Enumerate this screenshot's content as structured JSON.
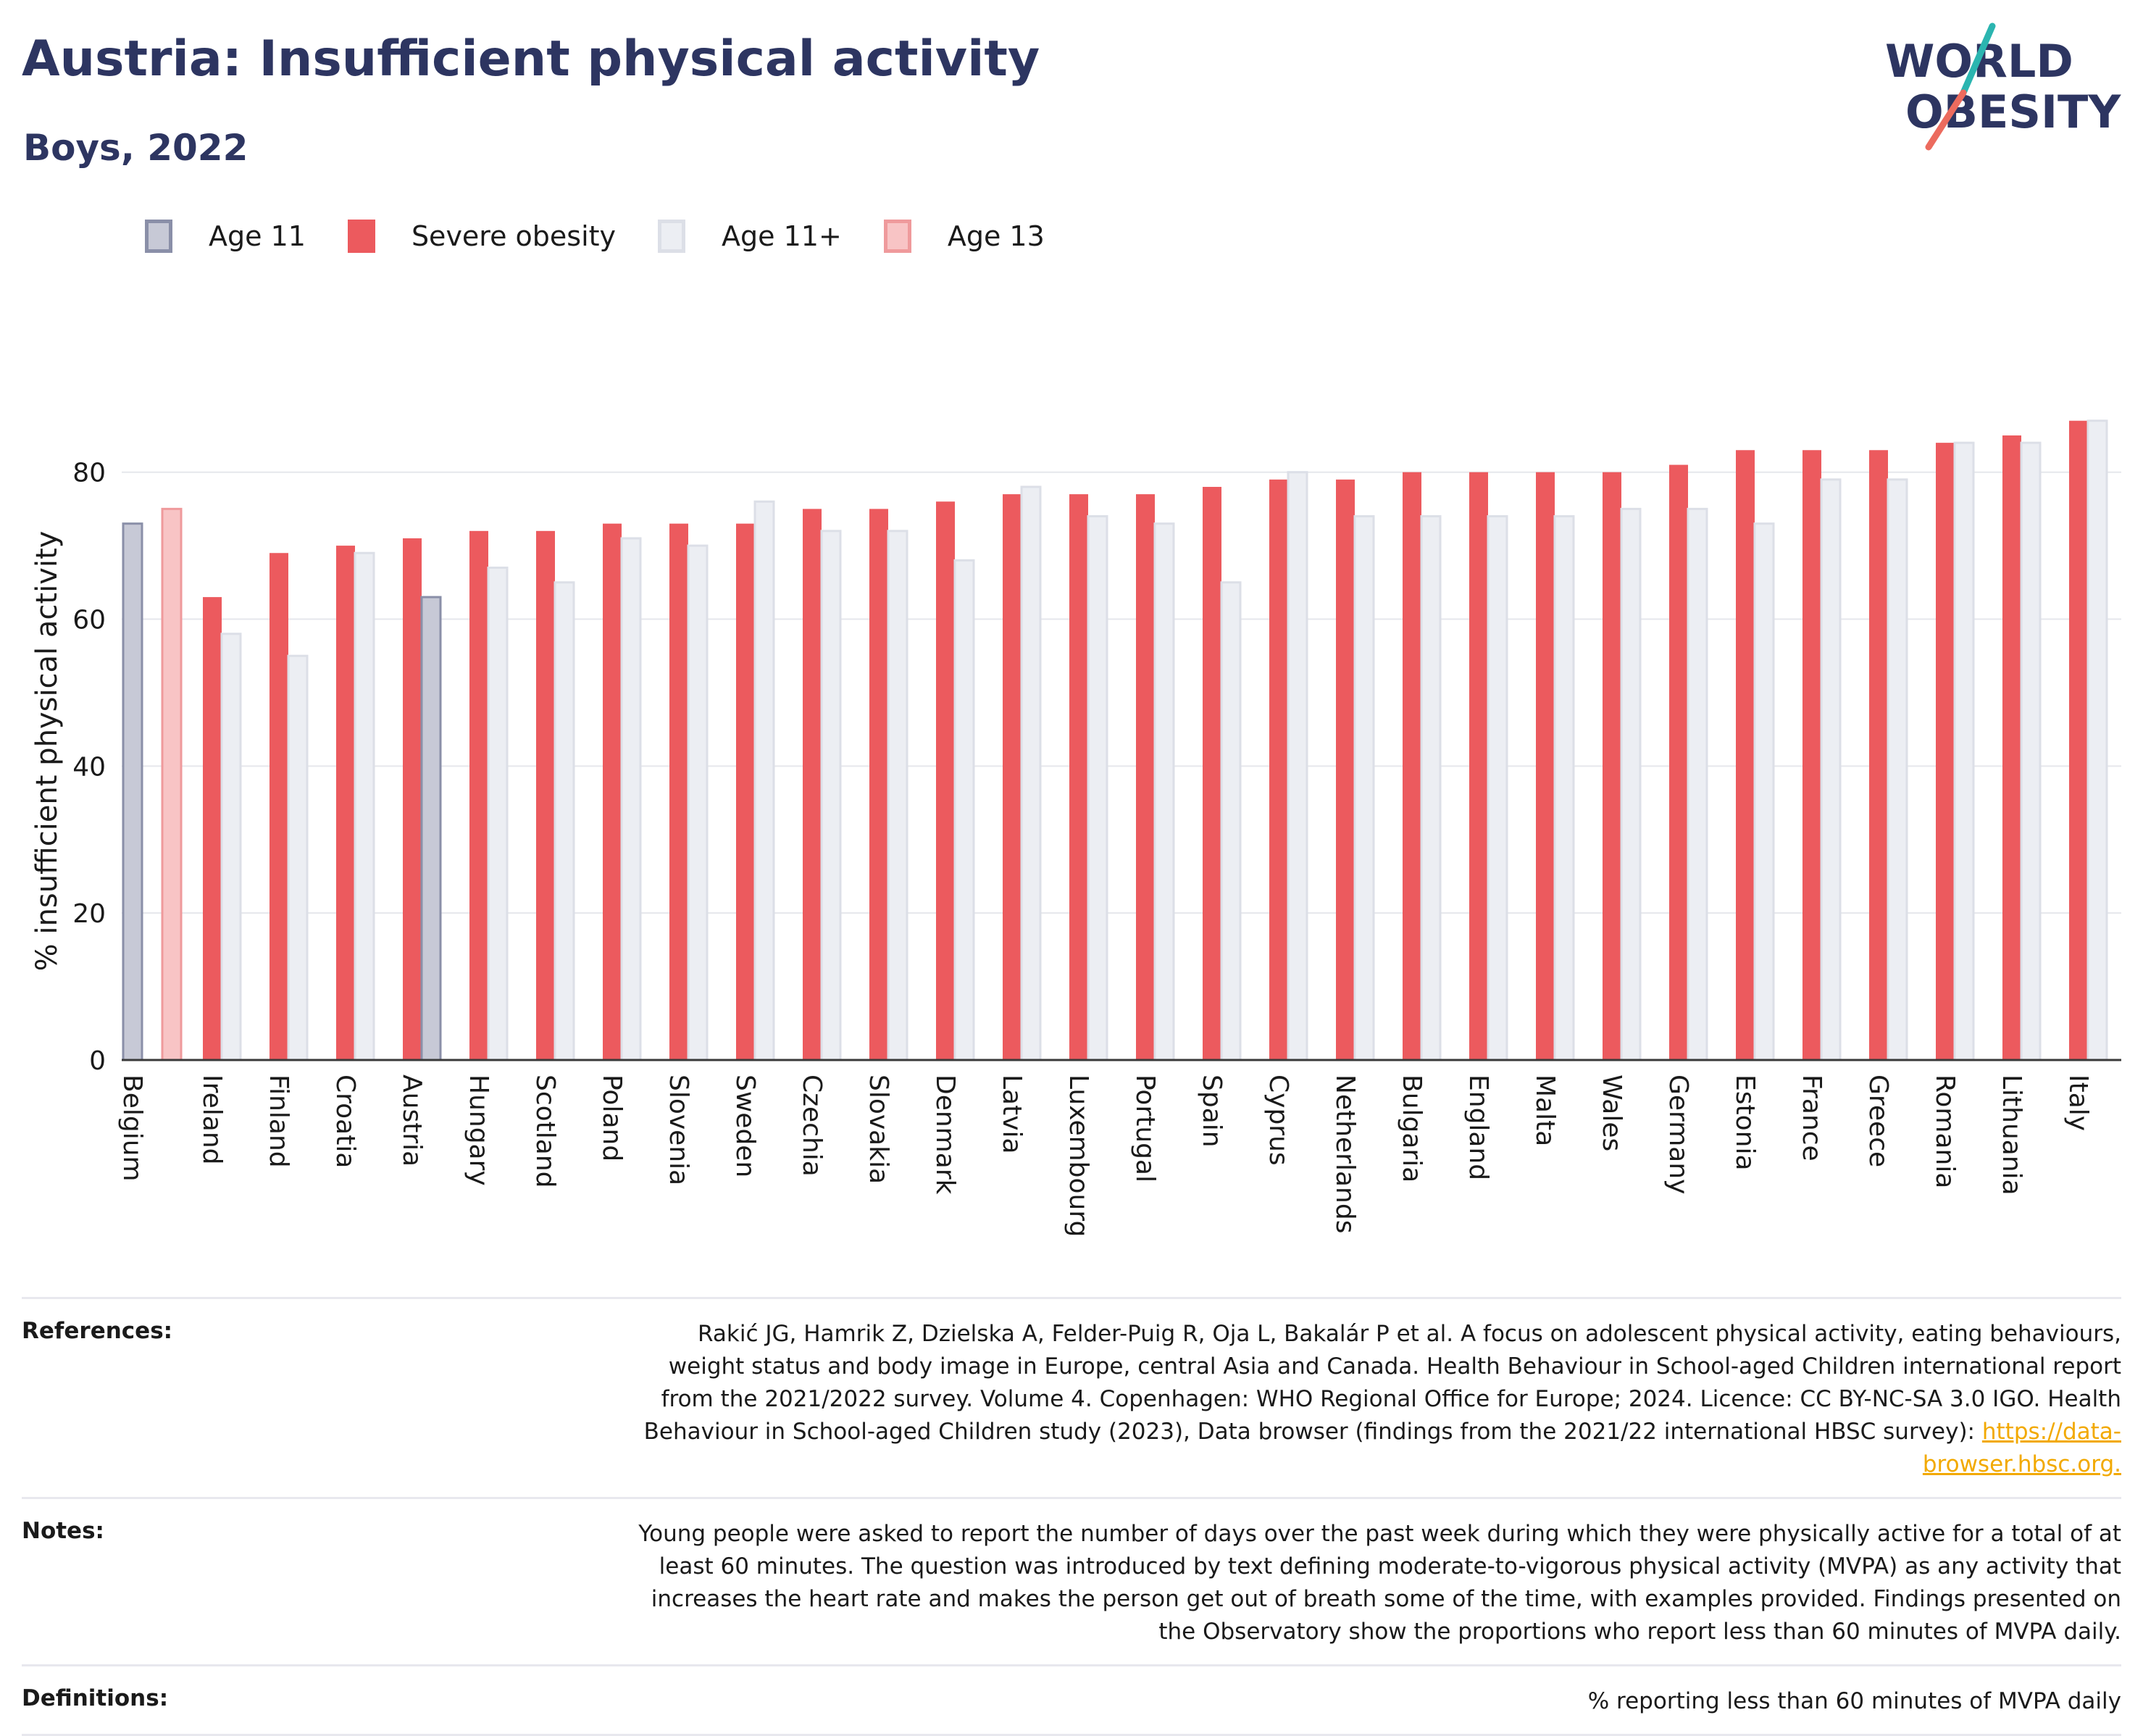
{
  "header": {
    "title": "Austria: Insufficient physical activity",
    "subtitle": "Boys, 2022",
    "logo_line1": "WORLD",
    "logo_line2": "OBESITY"
  },
  "legend": [
    {
      "label": "Age 11",
      "color": "#c7c9d6",
      "border": "#8a8fa8"
    },
    {
      "label": "Severe obesity",
      "color": "#ec5a5e",
      "border": "#ec5a5e"
    },
    {
      "label": "Age 11+",
      "color": "#eceef3",
      "border": "#dcdfe7"
    },
    {
      "label": "Age 13",
      "color": "#f8c4c5",
      "border": "#ef9a9c"
    }
  ],
  "chart_data": {
    "type": "bar",
    "ylabel": "% insufficient physical activity",
    "ylim": [
      0,
      92
    ],
    "yticks": [
      0,
      20,
      40,
      60,
      80
    ],
    "grid": true,
    "legend_position": "top-left",
    "categories": [
      "Belgium",
      "Ireland",
      "Finland",
      "Croatia",
      "Austria",
      "Hungary",
      "Scotland",
      "Poland",
      "Slovenia",
      "Sweden",
      "Czechia",
      "Slovakia",
      "Denmark",
      "Latvia",
      "Luxembourg",
      "Portugal",
      "Spain",
      "Cyprus",
      "Netherlands",
      "Bulgaria",
      "England",
      "Malta",
      "Wales",
      "Germany",
      "Estonia",
      "France",
      "Greece",
      "Romania",
      "Lithuania",
      "Italy"
    ],
    "series": [
      {
        "name": "Age 11",
        "color": "#c7c9d6",
        "values": [
          73,
          null,
          null,
          null,
          63,
          null,
          null,
          null,
          null,
          null,
          null,
          null,
          null,
          null,
          null,
          null,
          null,
          null,
          null,
          null,
          null,
          null,
          null,
          null,
          null,
          null,
          null,
          null,
          null,
          null
        ]
      },
      {
        "name": "Age 13",
        "color": "#f8c4c5",
        "values": [
          75,
          null,
          null,
          null,
          null,
          null,
          null,
          null,
          null,
          null,
          null,
          null,
          null,
          null,
          null,
          null,
          null,
          null,
          null,
          null,
          null,
          null,
          null,
          null,
          null,
          null,
          null,
          null,
          null,
          null
        ]
      },
      {
        "name": "Severe obesity",
        "color": "#ec5a5e",
        "values": [
          null,
          63,
          69,
          70,
          71,
          72,
          72,
          73,
          73,
          73,
          75,
          75,
          76,
          77,
          77,
          77,
          78,
          79,
          79,
          80,
          80,
          80,
          80,
          81,
          83,
          83,
          83,
          84,
          85,
          87
        ]
      },
      {
        "name": "Age 11+",
        "color": "#eceef3",
        "values": [
          null,
          58,
          55,
          69,
          null,
          67,
          65,
          71,
          70,
          76,
          72,
          72,
          68,
          78,
          74,
          73,
          65,
          80,
          74,
          74,
          74,
          74,
          75,
          75,
          73,
          79,
          79,
          84,
          84,
          87
        ]
      }
    ]
  },
  "footer": {
    "references_label": "References:",
    "references_text": "Rakić JG, Hamrik Z, Dzielska A, Felder-Puig R, Oja L, Bakalár P et al. A focus on adolescent physical activity, eating behaviours, weight status and body image in Europe, central Asia and Canada. Health Behaviour in School-aged Children international report from the 2021/2022 survey. Volume 4. Copenhagen: WHO Regional Office for Europe; 2024. Licence: CC BY-NC-SA 3.0 IGO. Health Behaviour in School-aged Children study (2023), Data browser (findings from the 2021/22 international HBSC survey): ",
    "references_link": "https://data-browser.hbsc.org.",
    "notes_label": "Notes:",
    "notes_text": "Young people were asked to report the number of days over the past week during which they were physically active for a total of at least 60 minutes. The question was introduced by text defining moderate-to-vigorous physical activity (MVPA) as any activity that increases the heart rate and makes the person get out of breath some of the time, with examples provided. Findings presented on the Observatory show the proportions who report less than 60 minutes of MVPA daily.",
    "definitions_label": "Definitions:",
    "definitions_text": "% reporting less than 60 minutes of MVPA daily"
  }
}
